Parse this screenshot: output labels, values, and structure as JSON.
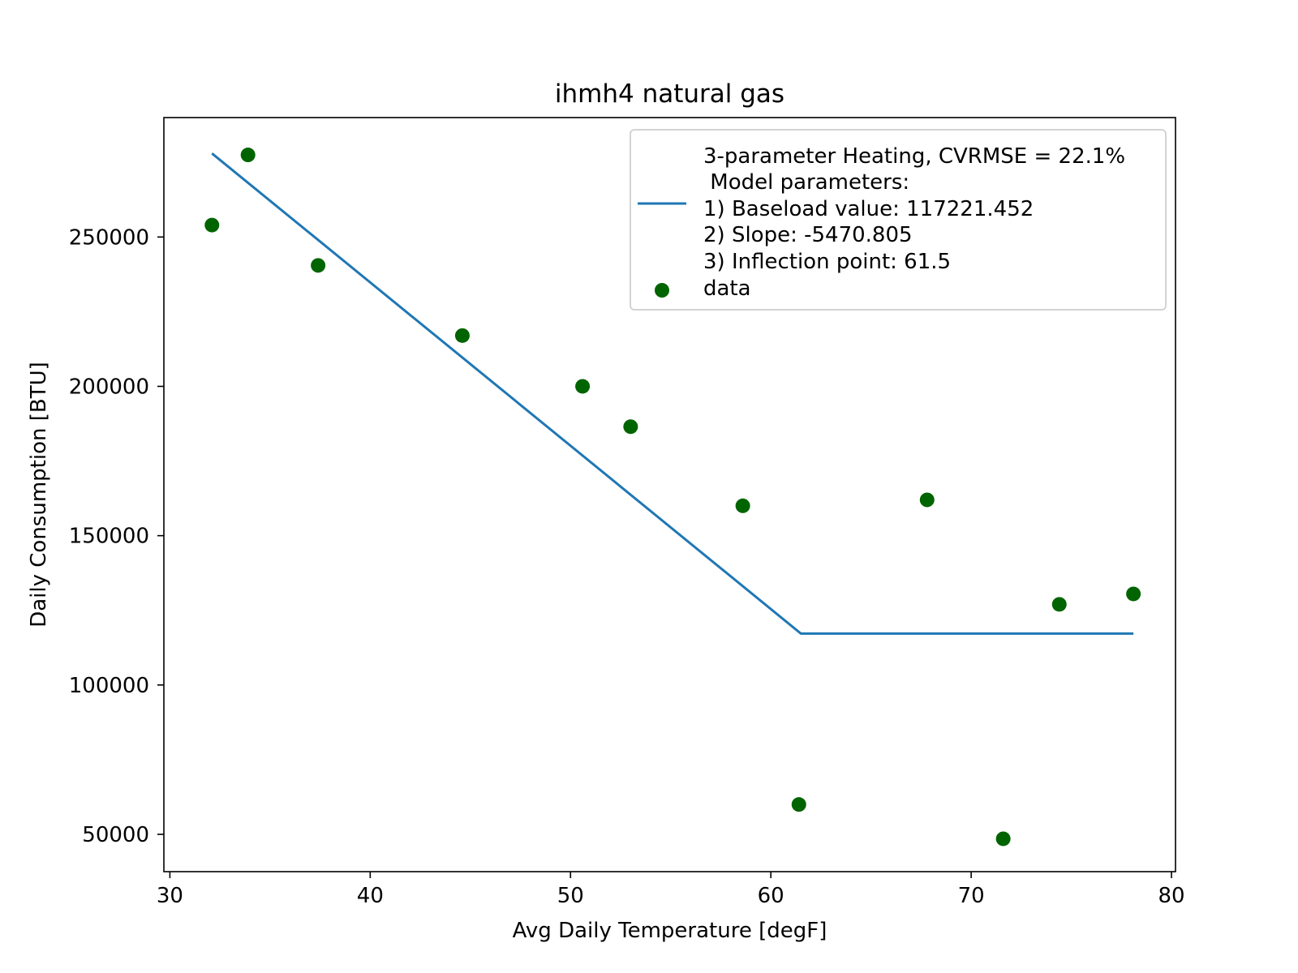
{
  "chart_data": {
    "type": "scatter",
    "title": "ihmh4 natural gas",
    "xlabel": "Avg Daily Temperature [degF]",
    "ylabel": "Daily Consumption [BTU]",
    "xlim": [
      29.7,
      80.2
    ],
    "ylim": [
      37500,
      290000
    ],
    "xticks": [
      30,
      40,
      50,
      60,
      70,
      80
    ],
    "yticks": [
      50000,
      100000,
      150000,
      200000,
      250000
    ],
    "grid": false,
    "legend_position": "top-right",
    "colors": {
      "fit_line": "#1f77b4",
      "data_points": "#006400"
    },
    "series": [
      {
        "name": "3-parameter Heating, CVRMSE = 22.1%\n Model parameters:\n1) Baseload value: 117221.452\n2) Slope: -5470.805\n3) Inflection point: 61.5",
        "kind": "line",
        "legend_lines": [
          "3-parameter Heating, CVRMSE = 22.1%",
          " Model parameters:",
          "1) Baseload value: 117221.452",
          "2) Slope: -5470.805",
          "3) Inflection point: 61.5"
        ],
        "x": [
          32.1,
          61.5,
          78.1
        ],
        "y": [
          278000,
          117221,
          117221
        ]
      },
      {
        "name": "data",
        "kind": "scatter",
        "x": [
          32.1,
          33.9,
          37.4,
          44.6,
          50.6,
          53.0,
          58.6,
          61.4,
          67.8,
          71.6,
          74.4,
          78.1
        ],
        "y": [
          254000,
          277500,
          240500,
          217000,
          200000,
          186500,
          160000,
          60000,
          162000,
          48500,
          127000,
          130500
        ]
      }
    ]
  }
}
